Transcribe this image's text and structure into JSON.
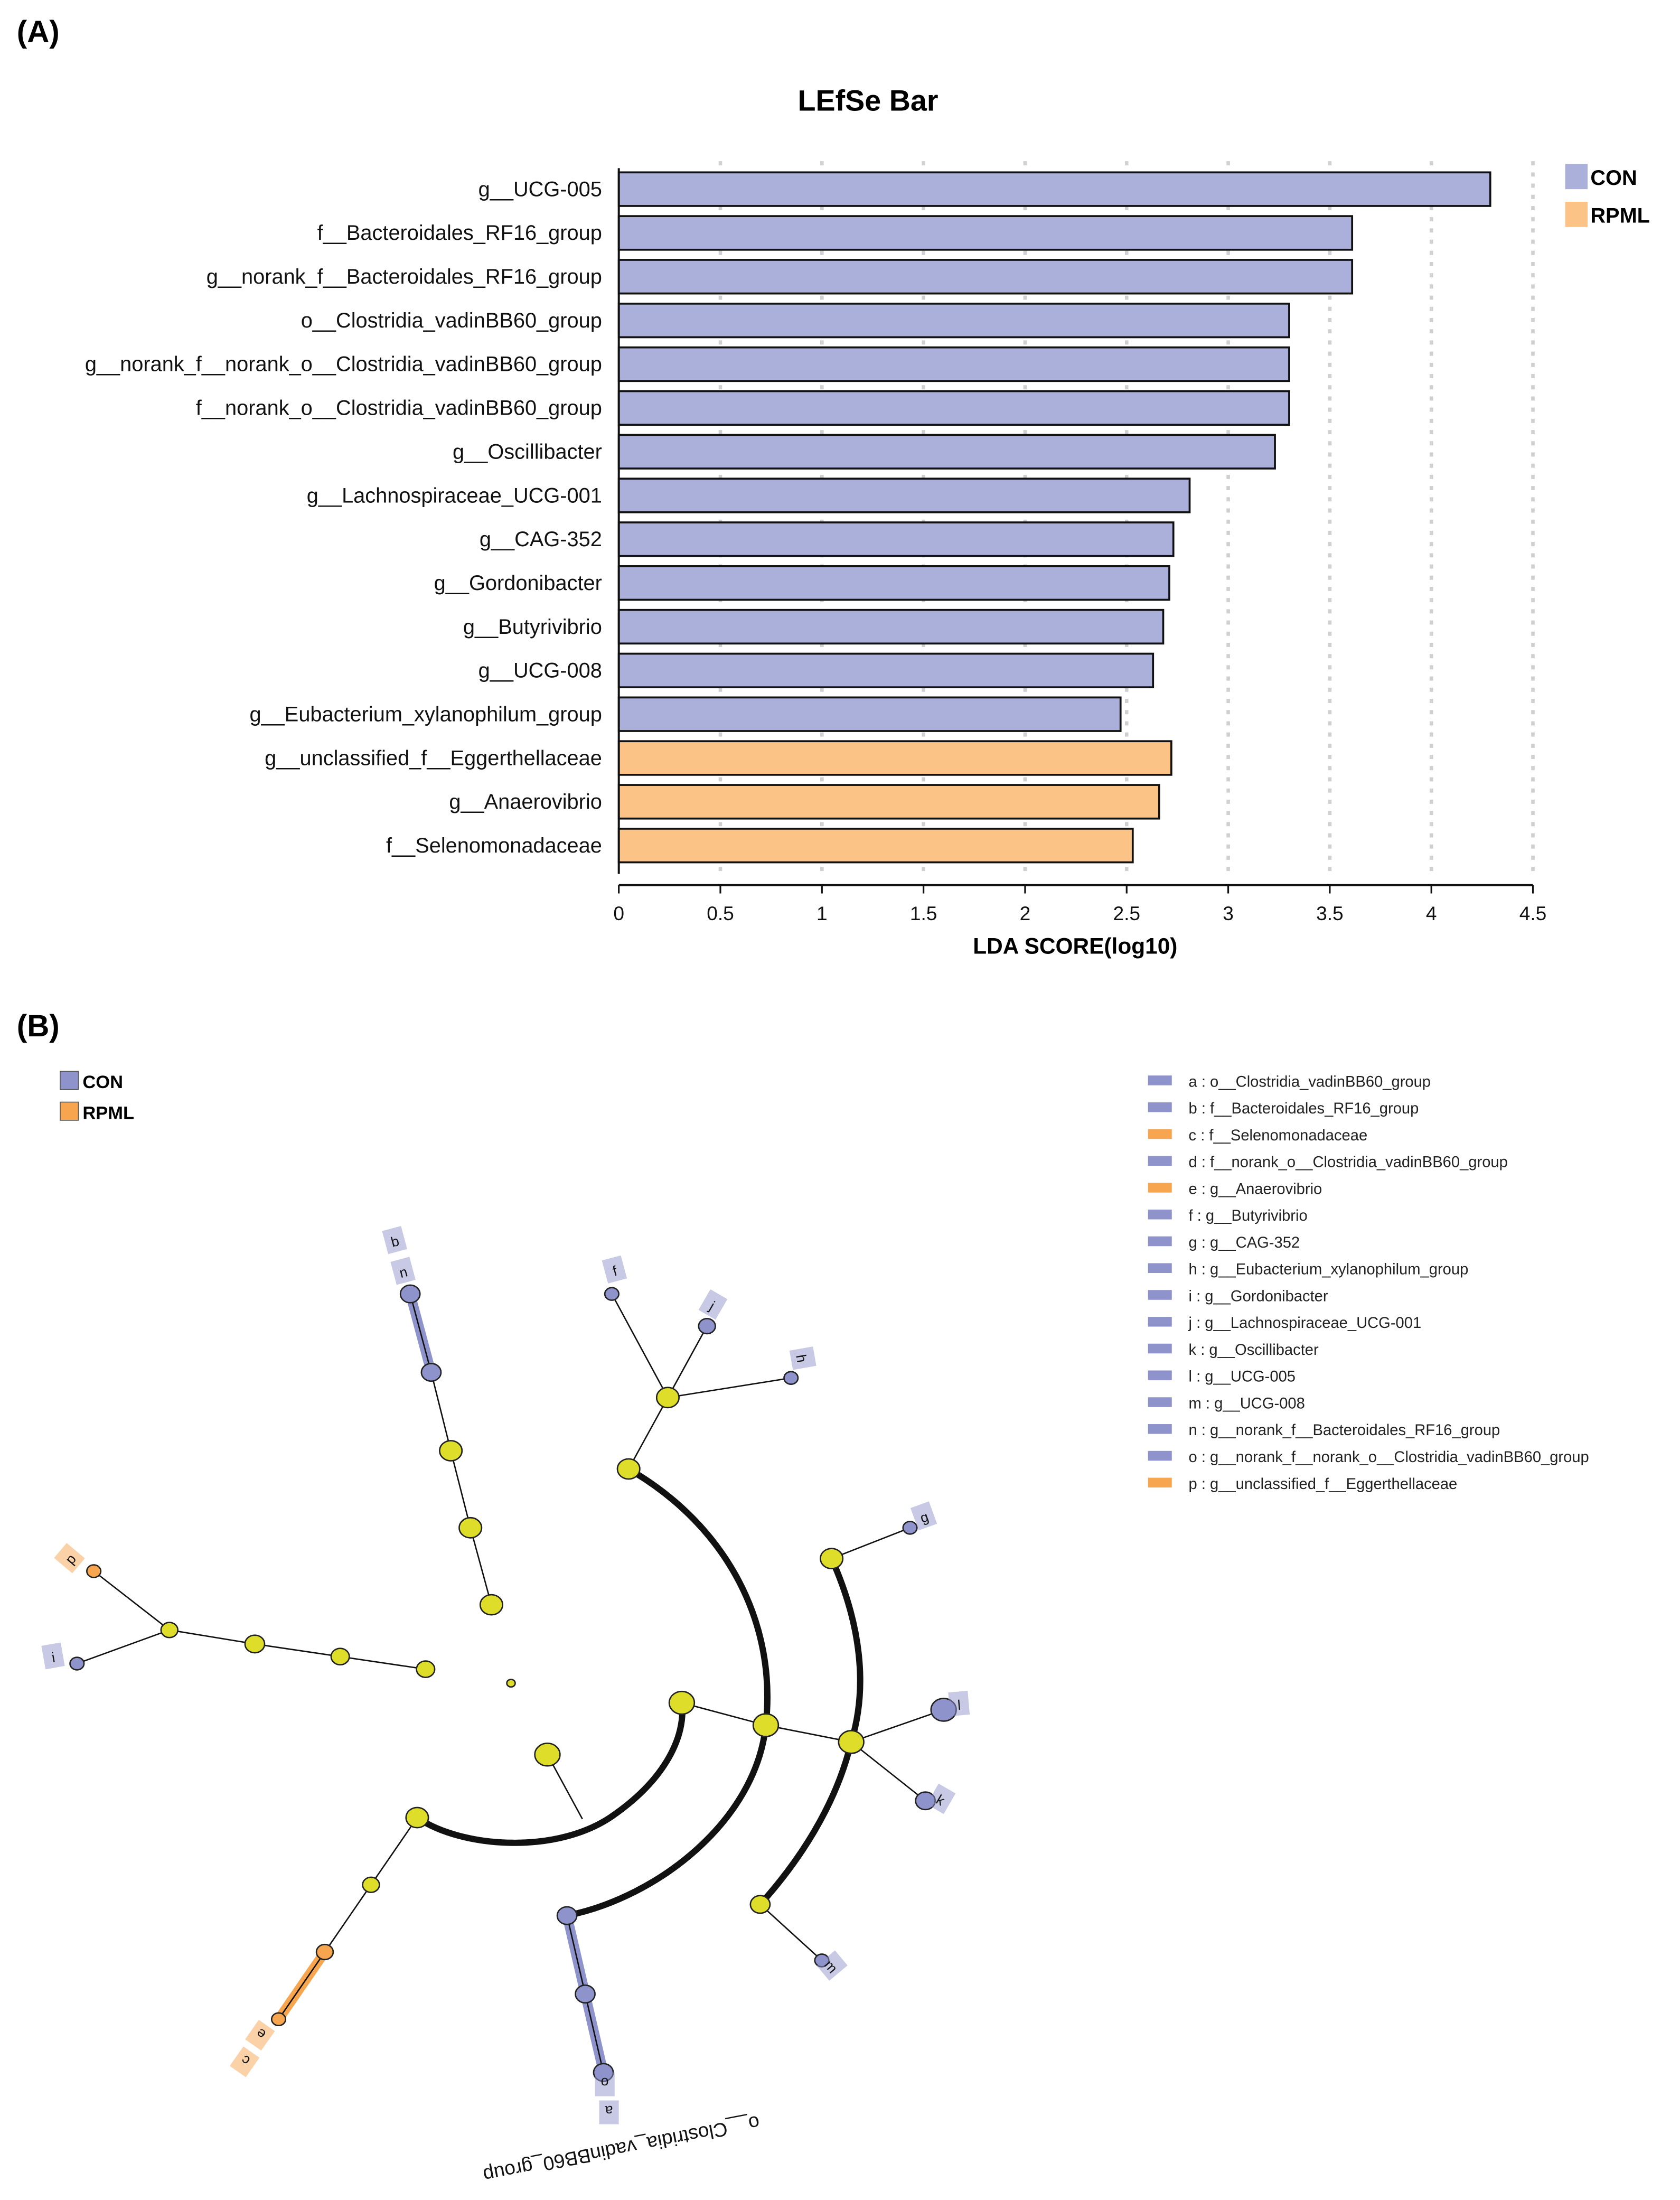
{
  "panel_a_label": "(A)",
  "panel_b_label": "(B)",
  "chart_data": {
    "type": "bar",
    "orientation": "horizontal",
    "title": "LEfSe Bar",
    "xlabel": "LDA SCORE(log10)",
    "ylabel": "",
    "xlim": [
      0,
      4.5
    ],
    "xticks": [
      "0",
      "0.5",
      "1",
      "1.5",
      "2",
      "2.5",
      "3",
      "3.5",
      "4",
      "4.5"
    ],
    "grid": "vertical dotted",
    "legend_position": "top-right",
    "legend": [
      {
        "name": "CON",
        "color": "#aab0da"
      },
      {
        "name": "RPML",
        "color": "#fcc386"
      }
    ],
    "categories": [
      "g__UCG-005",
      "f__Bacteroidales_RF16_group",
      "g__norank_f__Bacteroidales_RF16_group",
      "o__Clostridia_vadinBB60_group",
      "g__norank_f__norank_o__Clostridia_vadinBB60_group",
      "f__norank_o__Clostridia_vadinBB60_group",
      "g__Oscillibacter",
      "g__Lachnospiraceae_UCG-001",
      "g__CAG-352",
      "g__Gordonibacter",
      "g__Butyrivibrio",
      "g__UCG-008",
      "g__Eubacterium_xylanophilum_group",
      "g__unclassified_f__Eggerthellaceae",
      "g__Anaerovibrio",
      "f__Selenomonadaceae"
    ],
    "values": [
      4.29,
      3.61,
      3.61,
      3.3,
      3.3,
      3.3,
      3.23,
      2.81,
      2.73,
      2.71,
      2.68,
      2.63,
      2.47,
      2.72,
      2.66,
      2.53
    ],
    "groups": [
      "CON",
      "CON",
      "CON",
      "CON",
      "CON",
      "CON",
      "CON",
      "CON",
      "CON",
      "CON",
      "CON",
      "CON",
      "CON",
      "RPML",
      "RPML",
      "RPML"
    ]
  },
  "cladogram": {
    "group_legend": [
      {
        "name": "CON",
        "color": "#8f93cc"
      },
      {
        "name": "RPML",
        "color": "#f7a64f"
      }
    ],
    "clade_label": "o__Clostridia_vadinBB60_group",
    "node_letters": [
      "a",
      "b",
      "c",
      "d",
      "e",
      "f",
      "g",
      "h",
      "i",
      "j",
      "k",
      "l",
      "m",
      "n",
      "o",
      "p"
    ],
    "legend": [
      {
        "text": "a : o__Clostridia_vadinBB60_group",
        "group": "CON"
      },
      {
        "text": "b : f__Bacteroidales_RF16_group",
        "group": "CON"
      },
      {
        "text": "c : f__Selenomonadaceae",
        "group": "RPML"
      },
      {
        "text": "d : f__norank_o__Clostridia_vadinBB60_group",
        "group": "CON"
      },
      {
        "text": "e : g__Anaerovibrio",
        "group": "RPML"
      },
      {
        "text": "f : g__Butyrivibrio",
        "group": "CON"
      },
      {
        "text": "g : g__CAG-352",
        "group": "CON"
      },
      {
        "text": "h : g__Eubacterium_xylanophilum_group",
        "group": "CON"
      },
      {
        "text": "i : g__Gordonibacter",
        "group": "CON"
      },
      {
        "text": "j : g__Lachnospiraceae_UCG-001",
        "group": "CON"
      },
      {
        "text": "k : g__Oscillibacter",
        "group": "CON"
      },
      {
        "text": "l : g__UCG-005",
        "group": "CON"
      },
      {
        "text": "m : g__UCG-008",
        "group": "CON"
      },
      {
        "text": "n : g__norank_f__Bacteroidales_RF16_group",
        "group": "CON"
      },
      {
        "text": "o : g__norank_f__norank_o__Clostridia_vadinBB60_group",
        "group": "CON"
      },
      {
        "text": "p : g__unclassified_f__Eggerthellaceae",
        "group": "RPML"
      }
    ]
  }
}
